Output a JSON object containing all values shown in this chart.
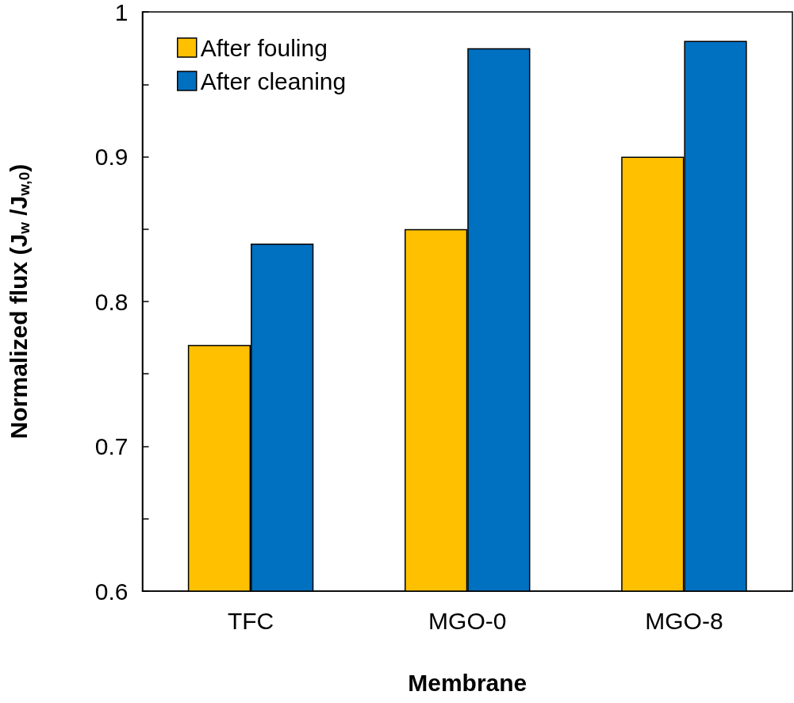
{
  "chart_data": {
    "type": "bar",
    "xlabel": "Membrane",
    "ylabel": "Normalized flux (J$_{w}$ /J$_{w,0}$)",
    "categories": [
      "TFC",
      "MGO-0",
      "MGO-8"
    ],
    "series": [
      {
        "name": "After fouling",
        "color": "#ffc000",
        "values": [
          0.77,
          0.85,
          0.9
        ]
      },
      {
        "name": "After cleaning",
        "color": "#0070c0",
        "values": [
          0.84,
          0.975,
          0.98
        ]
      }
    ],
    "ylim": [
      0.6,
      1.0
    ],
    "yticks": [
      0.6,
      {
        "value": 0.65,
        "label": null
      },
      0.7,
      {
        "value": 0.75,
        "label": null
      },
      0.8,
      {
        "value": 0.85,
        "label": null
      },
      0.9,
      {
        "value": 0.95,
        "label": null
      },
      {
        "value": 1.0,
        "label": "1"
      }
    ],
    "grid": false,
    "legend": "top left"
  }
}
